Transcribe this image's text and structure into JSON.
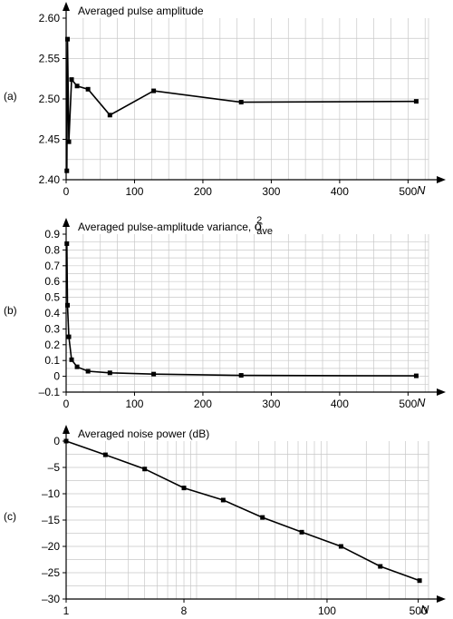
{
  "chart_data": [
    {
      "panel_label": "(a)",
      "type": "line",
      "title": "Averaged pulse amplitude",
      "xlabel": "N",
      "ylabel": "",
      "xlim": [
        0,
        530
      ],
      "ylim": [
        2.4,
        2.6
      ],
      "xticks": [
        0,
        100,
        200,
        300,
        400,
        500
      ],
      "xtick_labels": [
        "0",
        "100",
        "200",
        "300",
        "400",
        "500"
      ],
      "yticks": [
        2.4,
        2.45,
        2.5,
        2.55,
        2.6
      ],
      "ytick_labels": [
        "2.40",
        "2.45",
        "2.50",
        "2.55",
        "2.60"
      ],
      "x_log": false,
      "grid": true,
      "series": [
        {
          "x": [
            1,
            2,
            4,
            8,
            16,
            32,
            64,
            128,
            256,
            512
          ],
          "y": [
            2.411,
            2.574,
            2.447,
            2.524,
            2.516,
            2.512,
            2.48,
            2.51,
            2.496,
            2.497
          ]
        }
      ]
    },
    {
      "panel_label": "(b)",
      "type": "line",
      "title": "Averaged pulse-amplitude variance, ",
      "title_symbol": "σ",
      "title_sup": "2",
      "title_sub": "ave",
      "xlabel": "N",
      "ylabel": "",
      "xlim": [
        0,
        530
      ],
      "ylim": [
        -0.1,
        0.9
      ],
      "xticks": [
        0,
        100,
        200,
        300,
        400,
        500
      ],
      "xtick_labels": [
        "0",
        "100",
        "200",
        "300",
        "400",
        "500"
      ],
      "yticks": [
        -0.1,
        0,
        0.1,
        0.2,
        0.3,
        0.4,
        0.5,
        0.6,
        0.7,
        0.8,
        0.9
      ],
      "ytick_labels": [
        "–0.1",
        "0",
        "0.1",
        "0.2",
        "0.3",
        "0.4",
        "0.5",
        "0.6",
        "0.7",
        "0.8",
        "0.9"
      ],
      "x_log": false,
      "grid": true,
      "series": [
        {
          "x": [
            1,
            2,
            4,
            8,
            16,
            32,
            64,
            128,
            256,
            512
          ],
          "y": [
            0.84,
            0.45,
            0.25,
            0.105,
            0.06,
            0.032,
            0.022,
            0.014,
            0.006,
            0.003
          ]
        }
      ]
    },
    {
      "panel_label": "(c)",
      "type": "line",
      "title": "Averaged noise power (dB)",
      "xlabel": "N",
      "ylabel": "",
      "xlim": [
        1,
        600
      ],
      "ylim": [
        -30,
        0
      ],
      "xticks": [
        1,
        8,
        100,
        500
      ],
      "xtick_labels": [
        "1",
        "8",
        "100",
        "500"
      ],
      "yticks": [
        -30,
        -25,
        -20,
        -15,
        -10,
        -5,
        0
      ],
      "ytick_labels": [
        "–30",
        "–25",
        "–20",
        "–15",
        "–10",
        "–5",
        "0"
      ],
      "x_log": true,
      "grid": true,
      "series": [
        {
          "x": [
            1,
            2,
            4,
            8,
            16,
            32,
            64,
            128,
            256,
            512
          ],
          "y": [
            0,
            -2.6,
            -5.3,
            -8.9,
            -11.2,
            -14.5,
            -17.3,
            -20.0,
            -23.8,
            -26.5
          ]
        }
      ]
    }
  ]
}
